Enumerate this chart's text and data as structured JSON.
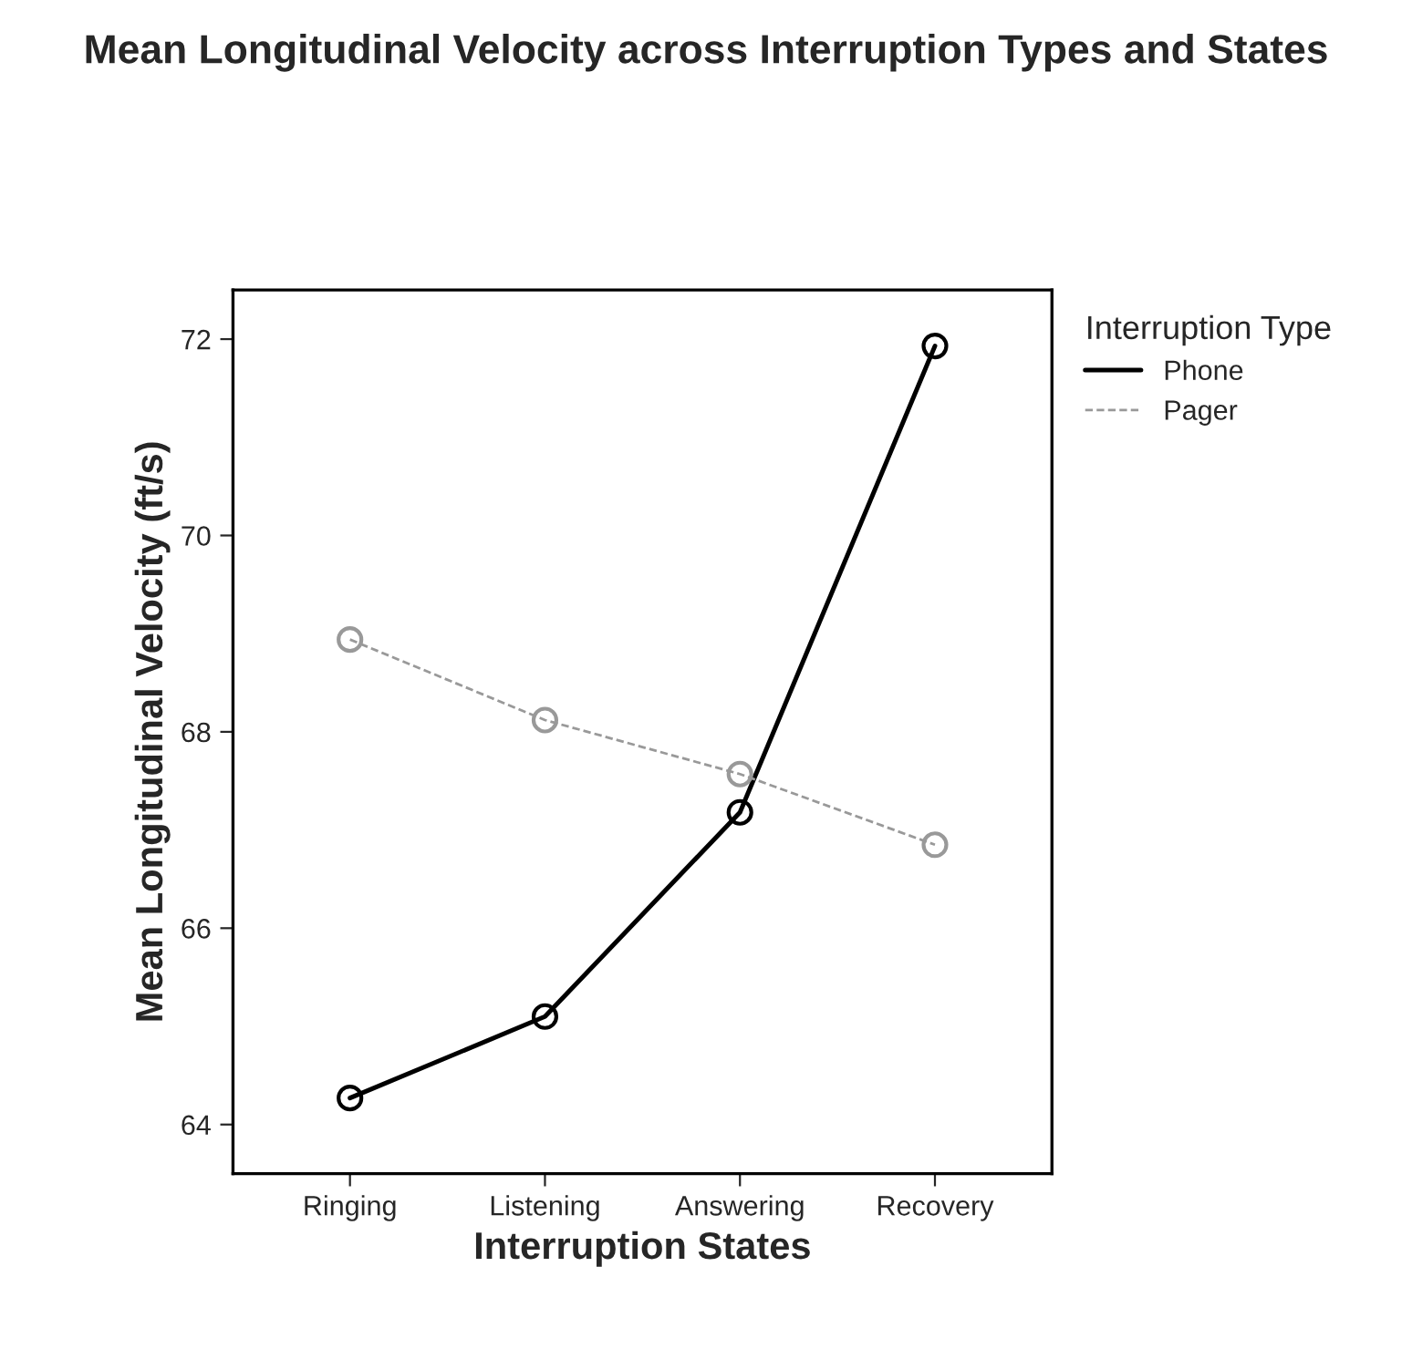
{
  "chart_data": {
    "type": "line",
    "title": "Mean Longitudinal Velocity across Interruption Types and States",
    "xlabel": "Interruption States",
    "ylabel": "Mean Longitudinal Velocity (ft/s)",
    "legend_title": "Interruption Type",
    "categories": [
      "Ringing",
      "Listening",
      "Answering",
      "Recovery"
    ],
    "series": [
      {
        "name": "Phone",
        "color": "#000000",
        "values": [
          64.27,
          65.1,
          67.18,
          71.93
        ],
        "line_style": "solid"
      },
      {
        "name": "Pager",
        "color": "#999999",
        "values": [
          68.94,
          68.12,
          67.57,
          66.85
        ],
        "line_style": "dashed"
      }
    ],
    "ylim": [
      63.5,
      72.5
    ],
    "yticks": [
      64,
      66,
      68,
      70,
      72
    ],
    "marker": "circle",
    "legend": "top right",
    "grid": false
  }
}
